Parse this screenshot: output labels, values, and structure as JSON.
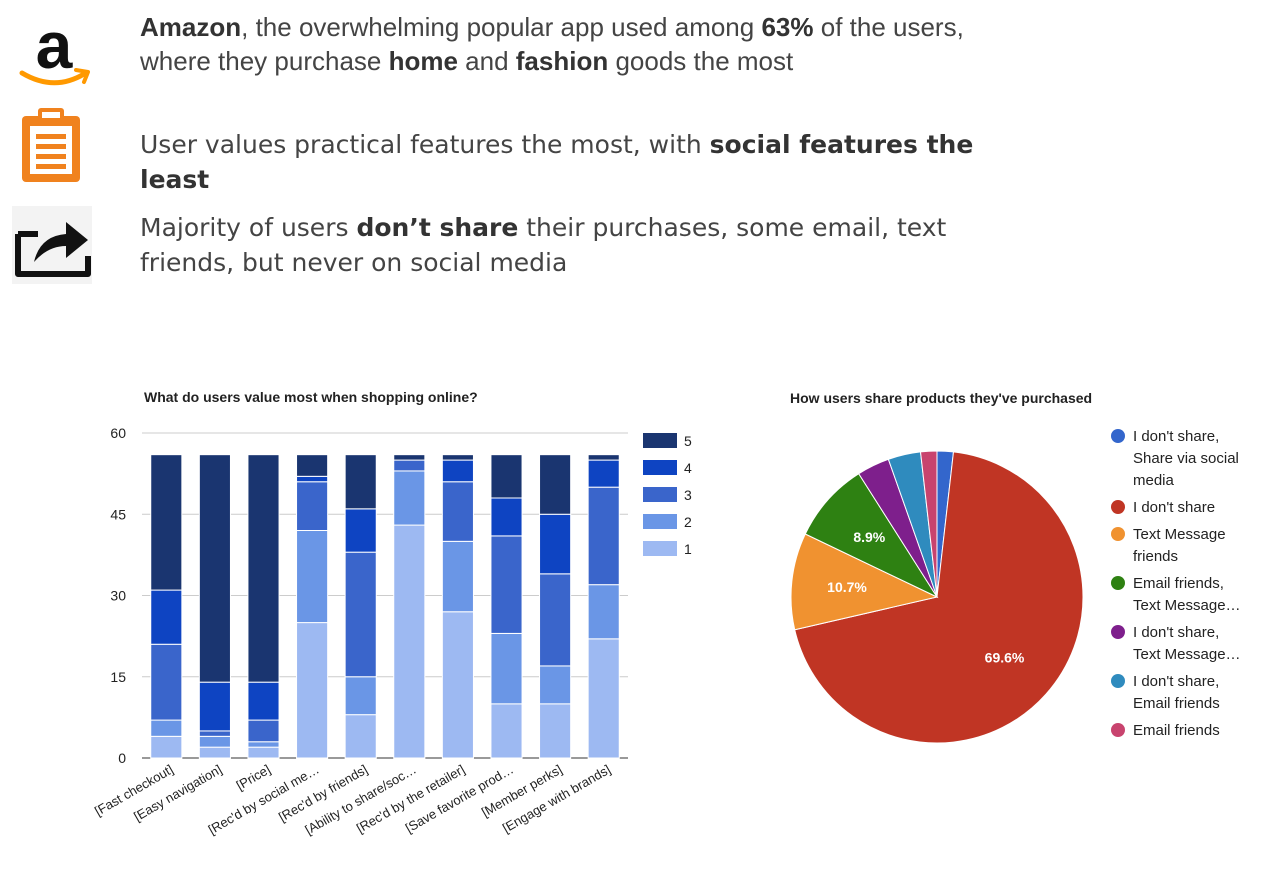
{
  "bullets": [
    {
      "segments": [
        {
          "text": "Amazon",
          "bold": true
        },
        {
          "text": ", the overwhelming popular app used among ",
          "bold": false
        },
        {
          "text": "63%",
          "bold": true
        },
        {
          "text": " of the users,",
          "bold": false
        },
        {
          "br": true
        },
        {
          "text": "where they purchase ",
          "bold": false
        },
        {
          "text": "home",
          "bold": true
        },
        {
          "text": " and ",
          "bold": false
        },
        {
          "text": "fashion",
          "bold": true
        },
        {
          "text": " goods the most",
          "bold": false
        }
      ]
    },
    {
      "segments": [
        {
          "text": "User values practical features the most, with ",
          "bold": false
        },
        {
          "text": "social features the",
          "bold": true
        },
        {
          "br": true
        },
        {
          "text": "least",
          "bold": true
        }
      ]
    },
    {
      "segments": [
        {
          "text": "Majority of users ",
          "bold": false
        },
        {
          "text": "don’t share",
          "bold": true
        },
        {
          "text": " their purchases, some email, text",
          "bold": false
        },
        {
          "br": true
        },
        {
          "text": "friends, but never on social media",
          "bold": false
        }
      ]
    }
  ],
  "icons": {
    "amazon": "amazon-logo-icon",
    "clipboard": "clipboard-icon",
    "share": "share-icon"
  },
  "colors": {
    "amazon_orange": "#FF9900",
    "clipboard_orange": "#F0821E"
  },
  "chart_data": [
    {
      "type": "bar",
      "stacked": true,
      "title": "What do users value most when shopping online?",
      "categories": [
        "[Fast checkout]",
        "[Easy navigation]",
        "[Price]",
        "[Rec'd by social me…",
        "[Rec'd by friends]",
        "[Ability to share/soc…",
        "[Rec'd by the retailer]",
        "[Save favorite prod…",
        "[Member perks]",
        "[Engage with brands]"
      ],
      "series": [
        {
          "name": "1",
          "color": "#9DB9F2",
          "values": [
            4,
            2,
            2,
            25,
            8,
            43,
            27,
            10,
            10,
            22
          ]
        },
        {
          "name": "2",
          "color": "#6A96E6",
          "values": [
            3,
            2,
            1,
            17,
            7,
            10,
            13,
            13,
            7,
            10
          ]
        },
        {
          "name": "3",
          "color": "#3A65CB",
          "values": [
            14,
            1,
            4,
            9,
            23,
            2,
            11,
            18,
            17,
            18
          ]
        },
        {
          "name": "4",
          "color": "#0E44C2",
          "values": [
            10,
            9,
            7,
            1,
            8,
            0,
            4,
            7,
            11,
            5
          ]
        },
        {
          "name": "5",
          "color": "#1A3570",
          "values": [
            25,
            42,
            42,
            4,
            10,
            1,
            1,
            8,
            11,
            1
          ]
        }
      ],
      "yticks": [
        0,
        15,
        30,
        45,
        60
      ],
      "ylim": [
        0,
        60
      ],
      "grid": true,
      "legend": "right"
    },
    {
      "type": "pie",
      "title": "How users share products they've purchased",
      "slices": [
        {
          "label": "I don't share, Share via social media",
          "legend_lines": [
            "I don't share,",
            "Share via social",
            "media"
          ],
          "value": 1.8,
          "color": "#3366CC",
          "data_label": ""
        },
        {
          "label": "I don't share",
          "legend_lines": [
            "I don't share"
          ],
          "value": 69.6,
          "color": "#C03524",
          "data_label": "69.6%"
        },
        {
          "label": "Text Message friends",
          "legend_lines": [
            "Text Message",
            "friends"
          ],
          "value": 10.7,
          "color": "#F09230",
          "data_label": "10.7%"
        },
        {
          "label": "Email friends, Text Message…",
          "legend_lines": [
            "Email friends,",
            "Text Message…"
          ],
          "value": 8.9,
          "color": "#2E8112",
          "data_label": "8.9%"
        },
        {
          "label": "I don't share, Text Message…",
          "legend_lines": [
            "I don't share,",
            "Text Message…"
          ],
          "value": 3.6,
          "color": "#7E1F8C",
          "data_label": ""
        },
        {
          "label": "I don't share, Email friends",
          "legend_lines": [
            "I don't share,",
            "Email friends"
          ],
          "value": 3.6,
          "color": "#2F8BBE",
          "data_label": ""
        },
        {
          "label": "Email friends",
          "legend_lines": [
            "Email friends"
          ],
          "value": 1.8,
          "color": "#C8436E",
          "data_label": ""
        }
      ],
      "legend": "right"
    }
  ]
}
